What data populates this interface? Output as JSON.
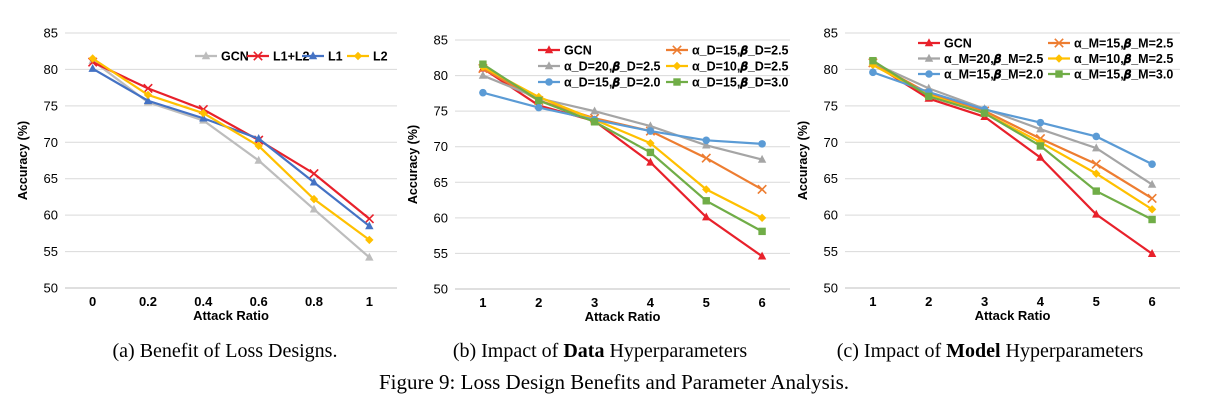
{
  "figure_caption": "Figure 9: Loss Design Benefits and Parameter Analysis.",
  "panels": [
    {
      "caption": {
        "prefix": "(a) Benefit of Loss Designs.",
        "bold": "",
        "suffix": ""
      }
    },
    {
      "caption": {
        "prefix": "(b) Impact of ",
        "bold": "Data",
        "suffix": " Hyperparameters"
      }
    },
    {
      "caption": {
        "prefix": "(c) Impact of ",
        "bold": "Model",
        "suffix": " Hyperparameters"
      }
    }
  ],
  "chart_data": [
    {
      "type": "line",
      "title": "",
      "xlabel": "Attack Ratio",
      "ylabel": "Accuracy (%)",
      "x": [
        0,
        0.2,
        0.4,
        0.6,
        0.8,
        1
      ],
      "x_tick_labels": [
        "0",
        "0.2",
        "0.4",
        "0.6",
        "0.8",
        "1"
      ],
      "ylim": [
        50,
        85
      ],
      "y_ticks": [
        50,
        55,
        60,
        65,
        70,
        75,
        80,
        85
      ],
      "grid": "horizontal",
      "legend_position": "top-right",
      "legend_columns": 4,
      "series": [
        {
          "name": "GCN",
          "color": "#bdbdbd",
          "marker": "triangle",
          "values": [
            81.2,
            75.5,
            73.0,
            67.5,
            60.8,
            54.2
          ]
        },
        {
          "name": "L1+L2",
          "color": "#e8212b",
          "marker": "x",
          "values": [
            81.0,
            77.4,
            74.5,
            70.3,
            65.7,
            59.5
          ]
        },
        {
          "name": "L1",
          "color": "#4472c4",
          "marker": "triangle",
          "values": [
            80.1,
            75.7,
            73.3,
            70.5,
            64.5,
            58.5
          ]
        },
        {
          "name": "L2",
          "color": "#ffc000",
          "marker": "diamond",
          "values": [
            81.5,
            76.5,
            74.0,
            69.5,
            62.2,
            56.6
          ]
        }
      ]
    },
    {
      "type": "line",
      "title": "",
      "xlabel": "Attack Ratio",
      "ylabel": "Accuracy (%)",
      "x": [
        1,
        2,
        3,
        4,
        5,
        6
      ],
      "x_tick_labels": [
        "1",
        "2",
        "3",
        "4",
        "5",
        "6"
      ],
      "ylim": [
        50,
        85
      ],
      "y_ticks": [
        50,
        55,
        60,
        65,
        70,
        75,
        80,
        85
      ],
      "grid": "horizontal",
      "legend_position": "top-right",
      "legend_columns": 2,
      "series": [
        {
          "name": "GCN",
          "color": "#e8212b",
          "marker": "triangle",
          "values": [
            81.0,
            75.8,
            73.6,
            67.8,
            60.1,
            54.6
          ]
        },
        {
          "name": "α_D=15,𝜷_D=2.5",
          "color": "#ed7d31",
          "marker": "x",
          "values": [
            81.0,
            76.5,
            74.0,
            72.2,
            68.4,
            64.0
          ]
        },
        {
          "name": "α_D=20,𝜷_D=2.5",
          "color": "#a5a5a5",
          "marker": "triangle",
          "values": [
            80.0,
            76.8,
            75.0,
            72.9,
            70.2,
            68.2
          ]
        },
        {
          "name": "α_D=10,𝜷_D=2.5",
          "color": "#ffc000",
          "marker": "diamond",
          "values": [
            81.2,
            77.0,
            73.8,
            70.5,
            64.0,
            60.0
          ]
        },
        {
          "name": "α_D=15,𝜷_D=2.0",
          "color": "#5b9bd5",
          "marker": "circle",
          "values": [
            77.6,
            75.5,
            73.8,
            72.2,
            70.9,
            70.4
          ]
        },
        {
          "name": "α_D=15,𝜷_D=3.0",
          "color": "#70ad47",
          "marker": "square",
          "values": [
            81.6,
            76.5,
            73.5,
            69.2,
            62.4,
            58.1
          ]
        }
      ]
    },
    {
      "type": "line",
      "title": "",
      "xlabel": "Attack Ratio",
      "ylabel": "Accuracy (%)",
      "x": [
        1,
        2,
        3,
        4,
        5,
        6
      ],
      "x_tick_labels": [
        "1",
        "2",
        "3",
        "4",
        "5",
        "6"
      ],
      "ylim": [
        50,
        85
      ],
      "y_ticks": [
        50,
        55,
        60,
        65,
        70,
        75,
        80,
        85
      ],
      "grid": "horizontal",
      "legend_position": "top-right",
      "legend_columns": 2,
      "series": [
        {
          "name": "GCN",
          "color": "#e8212b",
          "marker": "triangle",
          "values": [
            80.8,
            76.0,
            73.5,
            67.9,
            60.1,
            54.7
          ]
        },
        {
          "name": "α_M=15,𝜷_M=2.5",
          "color": "#ed7d31",
          "marker": "x",
          "values": [
            80.9,
            76.7,
            74.3,
            70.5,
            67.0,
            62.3
          ]
        },
        {
          "name": "α_M=20,𝜷_M=2.5",
          "color": "#a5a5a5",
          "marker": "triangle",
          "values": [
            80.9,
            77.4,
            74.6,
            71.8,
            69.2,
            64.2
          ]
        },
        {
          "name": "α_M=10,𝜷_M=2.5",
          "color": "#ffc000",
          "marker": "diamond",
          "values": [
            80.6,
            76.5,
            74.0,
            70.0,
            65.7,
            60.8
          ]
        },
        {
          "name": "α_M=15,𝜷_M=2.0",
          "color": "#5b9bd5",
          "marker": "circle",
          "values": [
            79.6,
            76.9,
            74.5,
            72.7,
            70.8,
            67.0
          ]
        },
        {
          "name": "α_M=15,𝜷_M=3.0",
          "color": "#70ad47",
          "marker": "square",
          "values": [
            81.2,
            76.3,
            74.0,
            69.5,
            63.3,
            59.4
          ]
        }
      ]
    }
  ]
}
